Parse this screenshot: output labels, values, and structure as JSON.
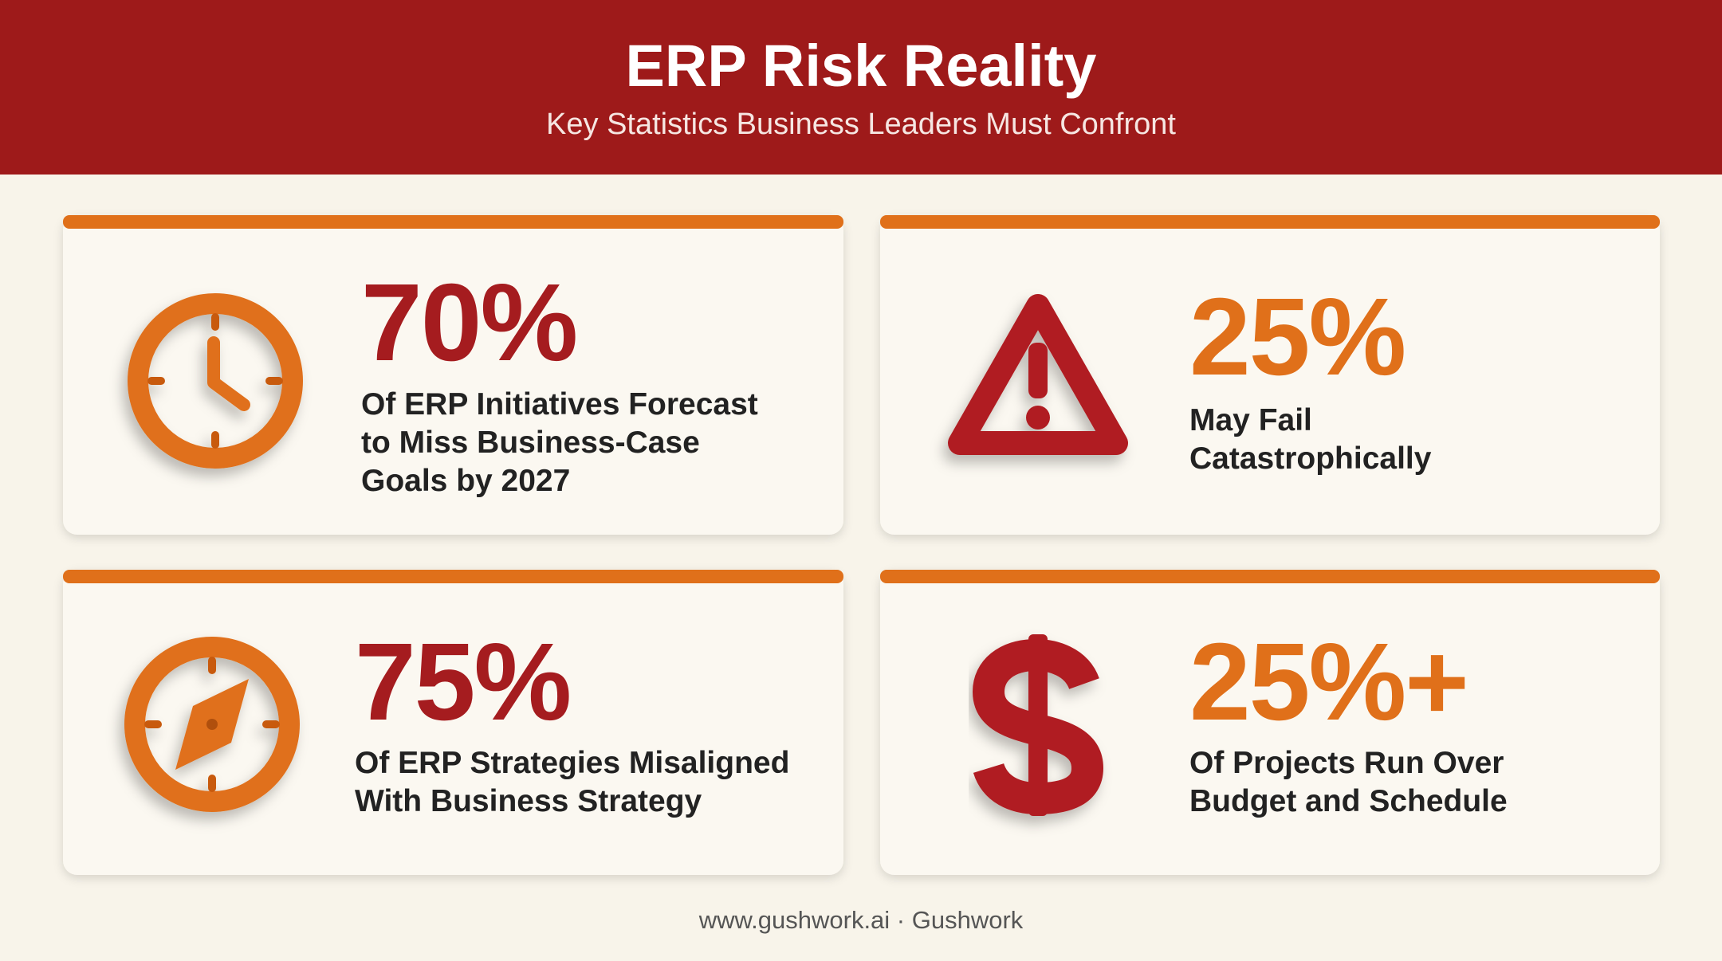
{
  "header": {
    "title": "ERP Risk Reality",
    "subtitle": "Key Statistics Business Leaders Must Confront"
  },
  "cards": [
    {
      "stat": "70%",
      "description": [
        "Of ERP Initiatives Forecast",
        "to Miss Business-Case",
        "Goals by 2027"
      ]
    },
    {
      "stat": "25%",
      "description": [
        "May Fail",
        "Catastrophically"
      ]
    },
    {
      "stat": "75%",
      "description": [
        "Of ERP Strategies Misaligned",
        "With Business Strategy"
      ]
    },
    {
      "stat": "25%+",
      "description": [
        "Of Projects Run Over",
        "Budget and Schedule"
      ]
    }
  ],
  "footer": "www.gushwork.ai · Gushwork"
}
